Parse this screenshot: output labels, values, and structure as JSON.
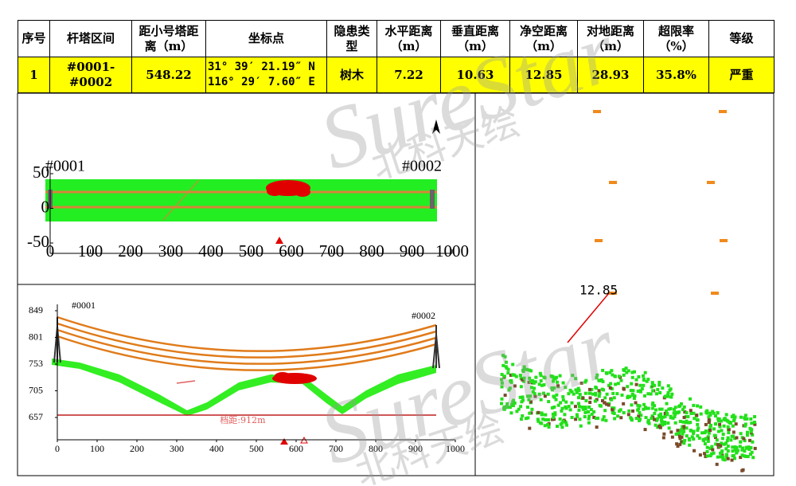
{
  "table": {
    "headers": [
      "序号",
      "杆塔区间",
      "距小号塔距离（m）",
      "坐标点",
      "隐患类型",
      "水平距离（m）",
      "垂直距离（m）",
      "净空距离（m）",
      "对地距离（m）",
      "超限率（%）",
      "等级"
    ],
    "rows": [
      [
        "1",
        "#0001-#0002",
        "548.22",
        [
          "31° 39′ 21.19″ N",
          "116° 29′ 7.60″ E"
        ],
        "树木",
        "7.22",
        "10.63",
        "12.85",
        "28.93",
        "35.8%",
        "严重"
      ]
    ]
  },
  "plan_view": {
    "xlim": [
      0,
      1000
    ],
    "xticks": [
      0,
      100,
      200,
      300,
      400,
      500,
      600,
      700,
      800,
      900,
      1000
    ],
    "ylim": [
      -50,
      50
    ],
    "yticks": [
      -50,
      0,
      50
    ],
    "towers": [
      "#0001",
      "#0002"
    ]
  },
  "profile_view": {
    "xlim": [
      0,
      1000
    ],
    "xticks": [
      0,
      100,
      200,
      300,
      400,
      500,
      600,
      700,
      800,
      900,
      1000
    ],
    "ylim": [
      657,
      849
    ],
    "yticks": [
      657,
      705,
      753,
      801,
      849
    ],
    "towers": [
      "#0001",
      "#0002"
    ],
    "span_label": "档距:912m"
  },
  "point_cloud_view": {
    "clearance_label": "12.85"
  },
  "watermark": {
    "brand": "SureStar",
    "name": "北科天绘"
  }
}
